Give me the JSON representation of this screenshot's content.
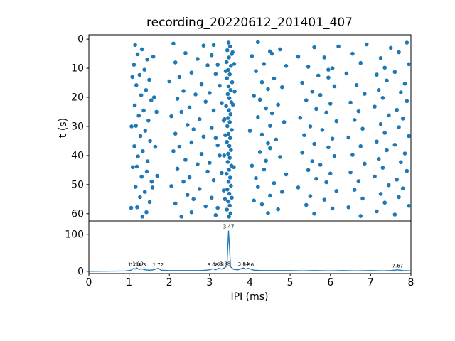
{
  "figure": {
    "title": "recording_20220612_201401_407",
    "xlabel": "IPI (ms)",
    "ylabel_top": "t (s)",
    "accent_color": "#1f77b4",
    "axis_color": "#000000",
    "background": "#ffffff"
  },
  "chart_data": [
    {
      "type": "scatter",
      "title": "recording_20220612_201401_407",
      "xlabel": "IPI (ms)",
      "ylabel": "t (s)",
      "xlim": [
        0,
        8
      ],
      "ylim": [
        -1.5,
        62.5
      ],
      "y_inverted": true,
      "xticks": [
        0,
        1,
        2,
        3,
        4,
        5,
        6,
        7,
        8
      ],
      "yticks": [
        0,
        10,
        20,
        30,
        40,
        50,
        60
      ],
      "marker_color": "#1f77b4",
      "points": [
        [
          3.47,
          1.2
        ],
        [
          3.51,
          2.5
        ],
        [
          3.44,
          3.8
        ],
        [
          3.55,
          5.1
        ],
        [
          3.48,
          6.3
        ],
        [
          3.42,
          7.9
        ],
        [
          3.53,
          9.2
        ],
        [
          3.46,
          10.6
        ],
        [
          3.5,
          12.1
        ],
        [
          3.43,
          13.4
        ],
        [
          3.56,
          14.8
        ],
        [
          3.47,
          16.2
        ],
        [
          3.52,
          17.5
        ],
        [
          3.45,
          18.9
        ],
        [
          3.49,
          20.3
        ],
        [
          3.54,
          21.7
        ],
        [
          3.41,
          23.0
        ],
        [
          3.48,
          24.4
        ],
        [
          3.52,
          25.8
        ],
        [
          3.46,
          27.1
        ],
        [
          3.5,
          28.5
        ],
        [
          3.44,
          29.9
        ],
        [
          3.55,
          31.2
        ],
        [
          3.47,
          32.6
        ],
        [
          3.51,
          34.0
        ],
        [
          3.43,
          35.3
        ],
        [
          3.49,
          36.7
        ],
        [
          3.53,
          38.1
        ],
        [
          3.46,
          39.4
        ],
        [
          3.5,
          40.8
        ],
        [
          3.45,
          42.2
        ],
        [
          3.54,
          43.5
        ],
        [
          3.48,
          44.9
        ],
        [
          3.42,
          46.3
        ],
        [
          3.51,
          47.6
        ],
        [
          3.47,
          49.0
        ],
        [
          3.53,
          50.4
        ],
        [
          3.44,
          51.7
        ],
        [
          3.49,
          53.1
        ],
        [
          3.55,
          54.5
        ],
        [
          3.46,
          55.8
        ],
        [
          3.5,
          57.2
        ],
        [
          3.43,
          58.6
        ],
        [
          3.52,
          59.9
        ],
        [
          3.48,
          61.0
        ],
        [
          3.57,
          4.5
        ],
        [
          3.4,
          11.0
        ],
        [
          3.58,
          22.5
        ],
        [
          3.39,
          33.0
        ],
        [
          3.6,
          44.0
        ],
        [
          3.38,
          55.0
        ],
        [
          3.62,
          18.0
        ],
        [
          3.36,
          40.0
        ],
        [
          3.61,
          8.5
        ],
        [
          3.37,
          27.5
        ],
        [
          1.15,
          2.0
        ],
        [
          1.32,
          3.5
        ],
        [
          1.21,
          5.2
        ],
        [
          1.45,
          7.0
        ],
        [
          1.12,
          8.8
        ],
        [
          1.38,
          10.5
        ],
        [
          1.26,
          12.3
        ],
        [
          1.5,
          14.0
        ],
        [
          1.18,
          15.8
        ],
        [
          1.42,
          17.5
        ],
        [
          1.3,
          19.3
        ],
        [
          1.55,
          21.0
        ],
        [
          1.14,
          22.8
        ],
        [
          1.36,
          24.5
        ],
        [
          1.24,
          26.3
        ],
        [
          1.48,
          28.0
        ],
        [
          1.17,
          29.8
        ],
        [
          1.4,
          31.5
        ],
        [
          1.28,
          33.3
        ],
        [
          1.52,
          35.0
        ],
        [
          1.13,
          36.8
        ],
        [
          1.34,
          38.5
        ],
        [
          1.22,
          40.3
        ],
        [
          1.46,
          42.0
        ],
        [
          1.19,
          43.8
        ],
        [
          1.44,
          45.5
        ],
        [
          1.31,
          47.3
        ],
        [
          1.56,
          49.0
        ],
        [
          1.16,
          50.8
        ],
        [
          1.39,
          52.5
        ],
        [
          1.27,
          54.3
        ],
        [
          1.51,
          56.0
        ],
        [
          1.2,
          57.8
        ],
        [
          1.43,
          59.5
        ],
        [
          1.33,
          61.0
        ],
        [
          1.6,
          6.0
        ],
        [
          1.08,
          13.0
        ],
        [
          1.62,
          20.0
        ],
        [
          1.06,
          30.0
        ],
        [
          1.65,
          37.0
        ],
        [
          1.09,
          44.0
        ],
        [
          1.58,
          51.0
        ],
        [
          1.05,
          58.0
        ],
        [
          1.68,
          25.0
        ],
        [
          1.7,
          47.0
        ],
        [
          2.1,
          1.5
        ],
        [
          2.85,
          2.2
        ],
        [
          4.2,
          1.0
        ],
        [
          5.6,
          2.8
        ],
        [
          6.9,
          1.8
        ],
        [
          7.5,
          3.0
        ],
        [
          3.1,
          2.0
        ],
        [
          4.75,
          3.5
        ],
        [
          6.2,
          2.5
        ],
        [
          7.9,
          1.2
        ],
        [
          2.4,
          4.8
        ],
        [
          3.05,
          5.5
        ],
        [
          4.5,
          4.2
        ],
        [
          5.2,
          6.0
        ],
        [
          6.55,
          5.0
        ],
        [
          7.25,
          6.5
        ],
        [
          2.7,
          6.8
        ],
        [
          4.05,
          5.8
        ],
        [
          5.85,
          6.3
        ],
        [
          7.7,
          4.5
        ],
        [
          2.15,
          8.0
        ],
        [
          2.95,
          9.0
        ],
        [
          4.35,
          8.5
        ],
        [
          5.45,
          9.5
        ],
        [
          6.75,
          8.2
        ],
        [
          7.35,
          9.8
        ],
        [
          3.2,
          8.8
        ],
        [
          4.9,
          9.2
        ],
        [
          6.05,
          10.0
        ],
        [
          7.95,
          8.6
        ],
        [
          2.55,
          11.5
        ],
        [
          3.15,
          12.0
        ],
        [
          4.15,
          11.0
        ],
        [
          5.7,
          12.5
        ],
        [
          6.4,
          11.8
        ],
        [
          7.15,
          12.2
        ],
        [
          2.25,
          13.0
        ],
        [
          4.6,
          13.5
        ],
        [
          5.95,
          13.2
        ],
        [
          7.6,
          11.3
        ],
        [
          2.0,
          14.5
        ],
        [
          2.8,
          15.5
        ],
        [
          4.3,
          14.8
        ],
        [
          5.3,
          15.0
        ],
        [
          6.65,
          15.8
        ],
        [
          7.4,
          14.2
        ],
        [
          3.25,
          16.0
        ],
        [
          4.8,
          16.5
        ],
        [
          6.1,
          16.2
        ],
        [
          7.85,
          15.3
        ],
        [
          2.35,
          17.8
        ],
        [
          3.0,
          18.5
        ],
        [
          4.45,
          17.2
        ],
        [
          5.55,
          18.0
        ],
        [
          6.85,
          18.8
        ],
        [
          7.2,
          17.5
        ],
        [
          2.65,
          19.0
        ],
        [
          4.1,
          19.5
        ],
        [
          5.75,
          19.2
        ],
        [
          7.75,
          18.3
        ],
        [
          2.2,
          20.5
        ],
        [
          2.9,
          21.5
        ],
        [
          4.25,
          20.8
        ],
        [
          5.4,
          21.0
        ],
        [
          6.5,
          21.8
        ],
        [
          7.3,
          20.2
        ],
        [
          3.3,
          22.0
        ],
        [
          4.7,
          22.5
        ],
        [
          6.0,
          22.2
        ],
        [
          7.9,
          21.3
        ],
        [
          2.5,
          23.5
        ],
        [
          3.1,
          24.5
        ],
        [
          4.4,
          23.8
        ],
        [
          5.65,
          24.0
        ],
        [
          6.7,
          24.8
        ],
        [
          7.1,
          23.2
        ],
        [
          2.3,
          25.0
        ],
        [
          4.55,
          25.5
        ],
        [
          5.9,
          25.2
        ],
        [
          7.65,
          24.3
        ],
        [
          2.05,
          26.5
        ],
        [
          2.75,
          27.5
        ],
        [
          4.2,
          26.8
        ],
        [
          5.25,
          27.0
        ],
        [
          6.6,
          27.8
        ],
        [
          7.45,
          26.2
        ],
        [
          3.35,
          28.0
        ],
        [
          4.85,
          28.5
        ],
        [
          6.15,
          28.2
        ],
        [
          7.8,
          27.3
        ],
        [
          2.45,
          29.5
        ],
        [
          3.05,
          30.5
        ],
        [
          4.5,
          29.8
        ],
        [
          5.5,
          30.0
        ],
        [
          6.8,
          30.8
        ],
        [
          7.25,
          29.2
        ],
        [
          2.6,
          31.0
        ],
        [
          4.0,
          31.5
        ],
        [
          5.8,
          31.2
        ],
        [
          7.7,
          30.3
        ],
        [
          2.15,
          32.5
        ],
        [
          2.85,
          33.5
        ],
        [
          4.3,
          32.8
        ],
        [
          5.35,
          33.0
        ],
        [
          6.45,
          33.8
        ],
        [
          7.35,
          32.2
        ],
        [
          3.15,
          34.0
        ],
        [
          4.65,
          34.5
        ],
        [
          6.05,
          34.2
        ],
        [
          7.95,
          33.3
        ],
        [
          2.55,
          35.5
        ],
        [
          3.2,
          36.5
        ],
        [
          4.45,
          35.8
        ],
        [
          5.6,
          36.0
        ],
        [
          6.75,
          36.8
        ],
        [
          7.15,
          35.2
        ],
        [
          2.25,
          37.0
        ],
        [
          4.5,
          37.5
        ],
        [
          5.95,
          37.2
        ],
        [
          7.6,
          36.3
        ],
        [
          2.1,
          38.5
        ],
        [
          2.8,
          39.5
        ],
        [
          4.25,
          38.8
        ],
        [
          5.3,
          39.0
        ],
        [
          6.55,
          39.8
        ],
        [
          7.4,
          38.2
        ],
        [
          3.25,
          40.0
        ],
        [
          4.75,
          40.5
        ],
        [
          6.1,
          40.2
        ],
        [
          7.85,
          39.3
        ],
        [
          2.4,
          41.5
        ],
        [
          3.0,
          42.5
        ],
        [
          4.4,
          41.8
        ],
        [
          5.55,
          42.0
        ],
        [
          6.85,
          42.8
        ],
        [
          7.2,
          41.2
        ],
        [
          2.7,
          43.0
        ],
        [
          4.05,
          43.5
        ],
        [
          5.75,
          43.2
        ],
        [
          7.75,
          42.3
        ],
        [
          2.2,
          44.5
        ],
        [
          2.95,
          45.5
        ],
        [
          4.35,
          44.8
        ],
        [
          5.45,
          45.0
        ],
        [
          6.5,
          45.8
        ],
        [
          7.3,
          44.2
        ],
        [
          3.3,
          46.0
        ],
        [
          4.9,
          46.5
        ],
        [
          6.0,
          46.2
        ],
        [
          7.9,
          45.3
        ],
        [
          2.5,
          47.5
        ],
        [
          3.1,
          48.5
        ],
        [
          4.15,
          47.8
        ],
        [
          5.65,
          48.0
        ],
        [
          6.7,
          48.8
        ],
        [
          7.1,
          47.2
        ],
        [
          2.35,
          49.0
        ],
        [
          4.6,
          49.5
        ],
        [
          5.9,
          49.2
        ],
        [
          7.65,
          48.3
        ],
        [
          2.05,
          50.5
        ],
        [
          2.75,
          51.5
        ],
        [
          4.2,
          50.8
        ],
        [
          5.2,
          51.0
        ],
        [
          6.6,
          51.8
        ],
        [
          7.45,
          50.2
        ],
        [
          3.35,
          52.0
        ],
        [
          4.8,
          52.5
        ],
        [
          6.15,
          52.2
        ],
        [
          7.8,
          51.3
        ],
        [
          2.45,
          53.5
        ],
        [
          3.05,
          54.5
        ],
        [
          4.5,
          53.8
        ],
        [
          5.5,
          54.0
        ],
        [
          6.8,
          54.8
        ],
        [
          7.25,
          53.2
        ],
        [
          2.6,
          55.0
        ],
        [
          4.1,
          55.5
        ],
        [
          5.85,
          55.2
        ],
        [
          7.7,
          54.3
        ],
        [
          2.15,
          56.5
        ],
        [
          2.9,
          57.5
        ],
        [
          4.3,
          56.8
        ],
        [
          5.4,
          57.0
        ],
        [
          6.45,
          57.8
        ],
        [
          7.35,
          56.2
        ],
        [
          3.2,
          58.0
        ],
        [
          4.7,
          58.5
        ],
        [
          6.05,
          58.2
        ],
        [
          7.95,
          57.3
        ],
        [
          2.55,
          59.5
        ],
        [
          3.15,
          60.5
        ],
        [
          4.45,
          59.8
        ],
        [
          5.6,
          60.0
        ],
        [
          6.75,
          60.8
        ],
        [
          7.15,
          59.2
        ],
        [
          2.3,
          61.0
        ],
        [
          4.55,
          5.0
        ],
        [
          5.95,
          10.5
        ],
        [
          7.6,
          60.3
        ]
      ]
    },
    {
      "type": "line",
      "xlabel": "IPI (ms)",
      "xlim": [
        0,
        8
      ],
      "ylim": [
        -6,
        136
      ],
      "yticks": [
        0,
        100
      ],
      "line_color": "#1f77b4",
      "curve": [
        [
          0,
          0
        ],
        [
          0.5,
          0.5
        ],
        [
          0.9,
          1
        ],
        [
          1.05,
          3
        ],
        [
          1.11,
          8
        ],
        [
          1.15,
          6
        ],
        [
          1.19,
          9
        ],
        [
          1.25,
          5
        ],
        [
          1.3,
          7
        ],
        [
          1.4,
          4
        ],
        [
          1.5,
          3
        ],
        [
          1.6,
          4
        ],
        [
          1.72,
          8
        ],
        [
          1.8,
          3
        ],
        [
          2.0,
          2
        ],
        [
          2.2,
          2
        ],
        [
          2.4,
          2
        ],
        [
          2.6,
          2
        ],
        [
          2.8,
          2
        ],
        [
          3.0,
          4
        ],
        [
          3.08,
          7
        ],
        [
          3.15,
          4
        ],
        [
          3.22,
          8
        ],
        [
          3.3,
          6
        ],
        [
          3.38,
          10
        ],
        [
          3.43,
          15
        ],
        [
          3.47,
          110
        ],
        [
          3.52,
          12
        ],
        [
          3.6,
          5
        ],
        [
          3.7,
          4
        ],
        [
          3.84,
          9
        ],
        [
          3.9,
          6
        ],
        [
          3.96,
          8
        ],
        [
          4.1,
          3
        ],
        [
          4.3,
          2
        ],
        [
          4.5,
          2
        ],
        [
          4.7,
          2
        ],
        [
          5.0,
          2
        ],
        [
          5.3,
          1.5
        ],
        [
          5.6,
          2
        ],
        [
          6.0,
          1.5
        ],
        [
          6.3,
          2
        ],
        [
          6.6,
          1.5
        ],
        [
          7.0,
          2
        ],
        [
          7.3,
          1.5
        ],
        [
          7.5,
          2
        ],
        [
          7.67,
          4
        ],
        [
          7.8,
          2
        ],
        [
          8,
          1.5
        ]
      ],
      "annotations": [
        {
          "x": 1.11,
          "y": 10,
          "label": "1.11"
        },
        {
          "x": 1.16,
          "y": 9,
          "label": "1.13"
        },
        {
          "x": 1.22,
          "y": 12,
          "label": "1.19"
        },
        {
          "x": 1.32,
          "y": 9,
          "label": "1.3"
        },
        {
          "x": 1.72,
          "y": 9,
          "label": "1.72"
        },
        {
          "x": 3.08,
          "y": 9,
          "label": "3.08"
        },
        {
          "x": 3.22,
          "y": 10,
          "label": "3.22"
        },
        {
          "x": 3.38,
          "y": 12,
          "label": "3.38"
        },
        {
          "x": 3.47,
          "y": 112,
          "label": "3.47"
        },
        {
          "x": 3.84,
          "y": 11,
          "label": "3.84"
        },
        {
          "x": 3.96,
          "y": 9,
          "label": "3.96"
        },
        {
          "x": 7.67,
          "y": 6,
          "label": "7.67"
        }
      ]
    }
  ]
}
